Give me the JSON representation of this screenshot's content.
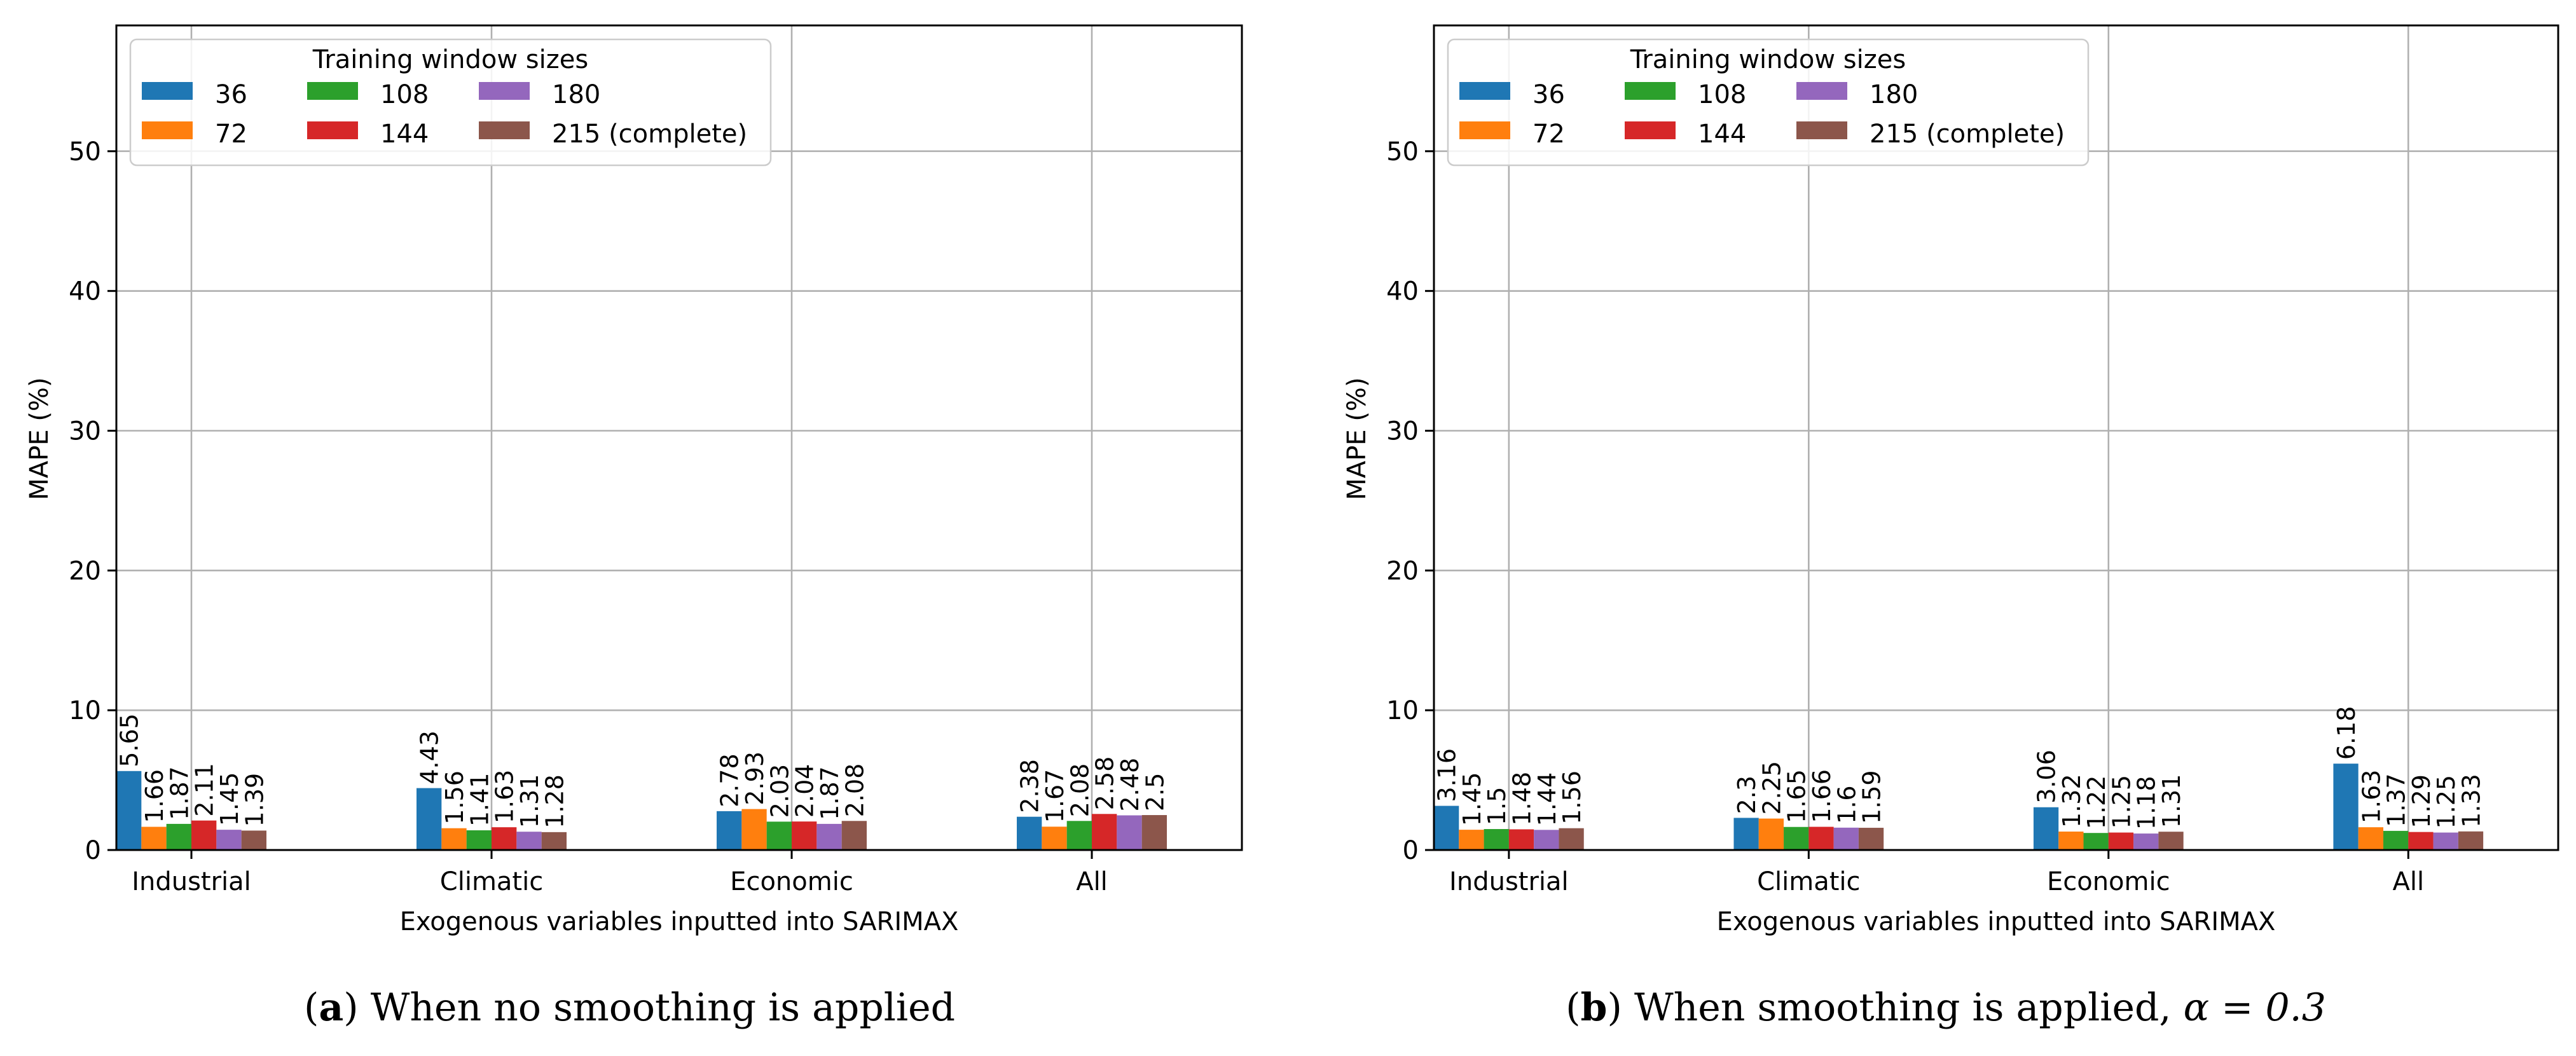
{
  "colors": [
    "#1f77b4",
    "#ff7f0e",
    "#2ca02c",
    "#d62728",
    "#9467bd",
    "#8c564b"
  ],
  "chart_data": [
    {
      "type": "bar",
      "caption": {
        "letter": "a",
        "text": "When no smoothing is applied",
        "math": ""
      },
      "xlabel": "Exogenous variables inputted into SARIMAX",
      "ylabel": "MAPE (%)",
      "ylim": [
        0,
        59
      ],
      "yticks": [
        0,
        10,
        20,
        30,
        40,
        50
      ],
      "grid": true,
      "legend": {
        "title": "Training window sizes",
        "placement": "top-left",
        "ncol": 3
      },
      "categories": [
        "Industrial",
        "Climatic",
        "Economic",
        "All"
      ],
      "series": [
        {
          "name": "36",
          "values": [
            5.65,
            4.43,
            2.78,
            2.38
          ],
          "labels": [
            "5.65",
            "4.43",
            "2.78",
            "2.38"
          ]
        },
        {
          "name": "72",
          "values": [
            1.66,
            1.56,
            2.93,
            1.67
          ],
          "labels": [
            "1.66",
            "1.56",
            "2.93",
            "1.67"
          ]
        },
        {
          "name": "108",
          "values": [
            1.87,
            1.41,
            2.03,
            2.08
          ],
          "labels": [
            "1.87",
            "1.41",
            "2.03",
            "2.08"
          ]
        },
        {
          "name": "144",
          "values": [
            2.11,
            1.63,
            2.04,
            2.58
          ],
          "labels": [
            "2.11",
            "1.63",
            "2.04",
            "2.58"
          ]
        },
        {
          "name": "180",
          "values": [
            1.45,
            1.31,
            1.87,
            2.48
          ],
          "labels": [
            "1.45",
            "1.31",
            "1.87",
            "2.48"
          ]
        },
        {
          "name": "215 (complete)",
          "values": [
            1.39,
            1.28,
            2.08,
            2.5
          ],
          "labels": [
            "1.39",
            "1.28",
            "2.08",
            "2.5"
          ]
        }
      ]
    },
    {
      "type": "bar",
      "caption": {
        "letter": "b",
        "text": "When smoothing is applied, ",
        "math": "α = 0.3"
      },
      "xlabel": "Exogenous variables inputted into SARIMAX",
      "ylabel": "MAPE (%)",
      "ylim": [
        0,
        59
      ],
      "yticks": [
        0,
        10,
        20,
        30,
        40,
        50
      ],
      "grid": true,
      "legend": {
        "title": "Training window sizes",
        "placement": "top-left",
        "ncol": 3
      },
      "categories": [
        "Industrial",
        "Climatic",
        "Economic",
        "All"
      ],
      "series": [
        {
          "name": "36",
          "values": [
            3.16,
            2.3,
            3.06,
            6.18
          ],
          "labels": [
            "3.16",
            "2.3",
            "3.06",
            "6.18"
          ]
        },
        {
          "name": "72",
          "values": [
            1.45,
            2.25,
            1.32,
            1.63
          ],
          "labels": [
            "1.45",
            "2.25",
            "1.32",
            "1.63"
          ]
        },
        {
          "name": "108",
          "values": [
            1.5,
            1.65,
            1.22,
            1.37
          ],
          "labels": [
            "1.5",
            "1.65",
            "1.22",
            "1.37"
          ]
        },
        {
          "name": "144",
          "values": [
            1.48,
            1.66,
            1.25,
            1.29
          ],
          "labels": [
            "1.48",
            "1.66",
            "1.25",
            "1.29"
          ]
        },
        {
          "name": "180",
          "values": [
            1.44,
            1.6,
            1.18,
            1.25
          ],
          "labels": [
            "1.44",
            "1.6",
            "1.18",
            "1.25"
          ]
        },
        {
          "name": "215 (complete)",
          "values": [
            1.56,
            1.59,
            1.31,
            1.33
          ],
          "labels": [
            "1.56",
            "1.59",
            "1.31",
            "1.33"
          ]
        }
      ]
    }
  ]
}
